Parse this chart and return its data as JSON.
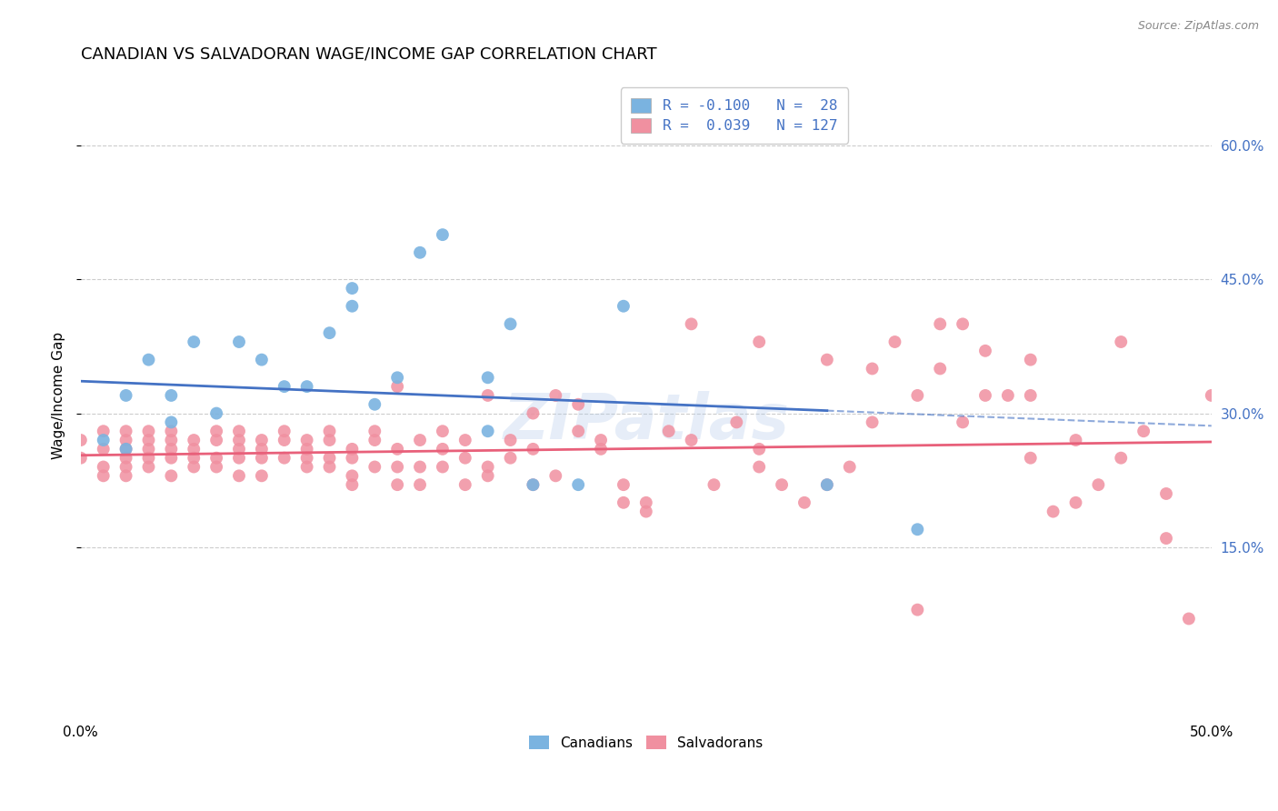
{
  "title": "CANADIAN VS SALVADORAN WAGE/INCOME GAP CORRELATION CHART",
  "source": "Source: ZipAtlas.com",
  "ylabel": "Wage/Income Gap",
  "ytick_labels": [
    "15.0%",
    "30.0%",
    "45.0%",
    "60.0%"
  ],
  "ytick_values": [
    0.15,
    0.3,
    0.45,
    0.6
  ],
  "xlim": [
    0.0,
    0.5
  ],
  "ylim": [
    -0.04,
    0.68
  ],
  "watermark": "ZIPatlas",
  "canadian_color": "#7ab3e0",
  "salvadoran_color": "#f090a0",
  "trend_canadian_color": "#4472c4",
  "trend_salvadoran_color": "#e8607a",
  "background_color": "#ffffff",
  "grid_color": "#cccccc",
  "canadians_x": [
    0.01,
    0.02,
    0.02,
    0.03,
    0.04,
    0.04,
    0.05,
    0.06,
    0.07,
    0.08,
    0.09,
    0.1,
    0.11,
    0.12,
    0.12,
    0.13,
    0.14,
    0.15,
    0.16,
    0.18,
    0.18,
    0.19,
    0.2,
    0.22,
    0.24,
    0.27,
    0.33,
    0.37
  ],
  "canadians_y": [
    0.27,
    0.32,
    0.26,
    0.36,
    0.32,
    0.29,
    0.38,
    0.3,
    0.38,
    0.36,
    0.33,
    0.33,
    0.39,
    0.42,
    0.44,
    0.31,
    0.34,
    0.48,
    0.5,
    0.28,
    0.34,
    0.4,
    0.22,
    0.22,
    0.42,
    0.63,
    0.22,
    0.17
  ],
  "salvadorans_x": [
    0.0,
    0.0,
    0.01,
    0.01,
    0.01,
    0.01,
    0.02,
    0.02,
    0.02,
    0.02,
    0.02,
    0.02,
    0.03,
    0.03,
    0.03,
    0.03,
    0.03,
    0.04,
    0.04,
    0.04,
    0.04,
    0.04,
    0.05,
    0.05,
    0.05,
    0.05,
    0.06,
    0.06,
    0.06,
    0.06,
    0.07,
    0.07,
    0.07,
    0.07,
    0.07,
    0.08,
    0.08,
    0.08,
    0.08,
    0.09,
    0.09,
    0.09,
    0.1,
    0.1,
    0.1,
    0.1,
    0.11,
    0.11,
    0.11,
    0.11,
    0.12,
    0.12,
    0.12,
    0.12,
    0.13,
    0.13,
    0.13,
    0.14,
    0.14,
    0.14,
    0.14,
    0.15,
    0.15,
    0.15,
    0.16,
    0.16,
    0.16,
    0.17,
    0.17,
    0.17,
    0.18,
    0.18,
    0.18,
    0.19,
    0.19,
    0.2,
    0.2,
    0.2,
    0.21,
    0.21,
    0.22,
    0.22,
    0.23,
    0.23,
    0.24,
    0.24,
    0.25,
    0.25,
    0.26,
    0.27,
    0.28,
    0.29,
    0.3,
    0.3,
    0.31,
    0.32,
    0.33,
    0.34,
    0.35,
    0.36,
    0.37,
    0.38,
    0.39,
    0.4,
    0.41,
    0.42,
    0.43,
    0.44,
    0.45,
    0.46,
    0.47,
    0.48,
    0.49,
    0.5,
    0.27,
    0.3,
    0.33,
    0.35,
    0.38,
    0.4,
    0.42,
    0.44,
    0.46,
    0.48,
    0.37,
    0.39,
    0.42
  ],
  "salvadorans_y": [
    0.25,
    0.27,
    0.26,
    0.24,
    0.28,
    0.23,
    0.27,
    0.25,
    0.26,
    0.23,
    0.28,
    0.24,
    0.26,
    0.25,
    0.27,
    0.24,
    0.28,
    0.25,
    0.27,
    0.23,
    0.26,
    0.28,
    0.25,
    0.27,
    0.24,
    0.26,
    0.25,
    0.27,
    0.24,
    0.28,
    0.26,
    0.25,
    0.27,
    0.23,
    0.28,
    0.25,
    0.27,
    0.23,
    0.26,
    0.25,
    0.27,
    0.28,
    0.25,
    0.27,
    0.24,
    0.26,
    0.25,
    0.27,
    0.24,
    0.28,
    0.25,
    0.23,
    0.26,
    0.22,
    0.27,
    0.24,
    0.28,
    0.33,
    0.26,
    0.22,
    0.24,
    0.22,
    0.24,
    0.27,
    0.26,
    0.24,
    0.28,
    0.25,
    0.27,
    0.22,
    0.32,
    0.24,
    0.23,
    0.25,
    0.27,
    0.3,
    0.26,
    0.22,
    0.32,
    0.23,
    0.31,
    0.28,
    0.27,
    0.26,
    0.22,
    0.2,
    0.2,
    0.19,
    0.28,
    0.27,
    0.22,
    0.29,
    0.26,
    0.24,
    0.22,
    0.2,
    0.22,
    0.24,
    0.29,
    0.38,
    0.08,
    0.35,
    0.4,
    0.37,
    0.32,
    0.32,
    0.19,
    0.2,
    0.22,
    0.25,
    0.28,
    0.16,
    0.07,
    0.32,
    0.4,
    0.38,
    0.36,
    0.35,
    0.4,
    0.32,
    0.36,
    0.27,
    0.38,
    0.21,
    0.32,
    0.29,
    0.25
  ]
}
